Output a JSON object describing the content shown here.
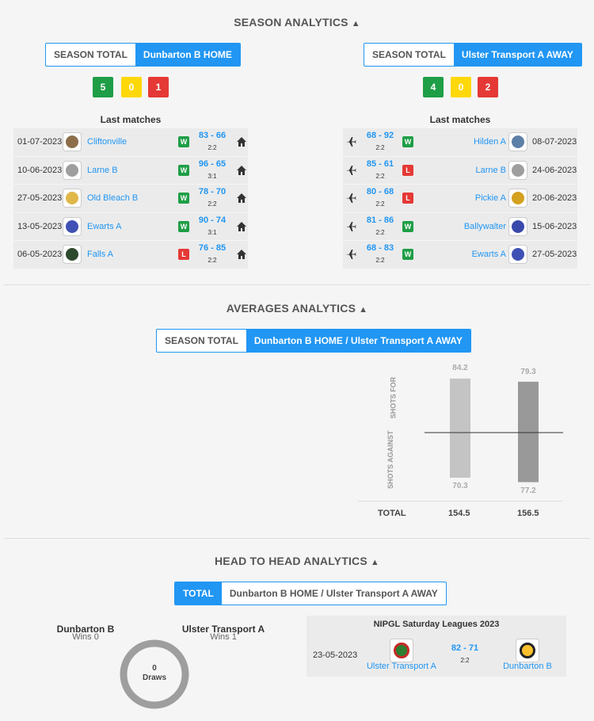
{
  "season": {
    "title": "SEASON ANALYTICS",
    "left": {
      "toggle": [
        "SEASON TOTAL",
        "Dunbarton B HOME"
      ],
      "form": {
        "win": "5",
        "draw": "0",
        "loss": "1"
      },
      "last_matches_label": "Last matches",
      "matches": [
        {
          "date": "01-07-2023",
          "team": "Cliftonville",
          "result": "W",
          "score_home": "83",
          "score_away": "66",
          "sub": "2:2"
        },
        {
          "date": "10-06-2023",
          "team": "Larne B",
          "result": "W",
          "score_home": "96",
          "score_away": "65",
          "sub": "3:1"
        },
        {
          "date": "27-05-2023",
          "team": "Old Bleach B",
          "result": "W",
          "score_home": "78",
          "score_away": "70",
          "sub": "2:2"
        },
        {
          "date": "13-05-2023",
          "team": "Ewarts A",
          "result": "W",
          "score_home": "90",
          "score_away": "74",
          "sub": "3:1"
        },
        {
          "date": "06-05-2023",
          "team": "Falls A",
          "result": "L",
          "score_home": "76",
          "score_away": "85",
          "sub": "2:2"
        }
      ]
    },
    "right": {
      "toggle": [
        "SEASON TOTAL",
        "Ulster Transport A AWAY"
      ],
      "form": {
        "win": "4",
        "draw": "0",
        "loss": "2"
      },
      "last_matches_label": "Last matches",
      "matches": [
        {
          "date": "08-07-2023",
          "team": "Hilden A",
          "result": "W",
          "score_home": "68",
          "score_away": "92",
          "sub": "2:2"
        },
        {
          "date": "24-06-2023",
          "team": "Larne B",
          "result": "L",
          "score_home": "85",
          "score_away": "61",
          "sub": "2:2"
        },
        {
          "date": "20-06-2023",
          "team": "Pickie A",
          "result": "L",
          "score_home": "80",
          "score_away": "68",
          "sub": "2:2"
        },
        {
          "date": "15-06-2023",
          "team": "Ballywalter",
          "result": "W",
          "score_home": "81",
          "score_away": "86",
          "sub": "2:2"
        },
        {
          "date": "27-05-2023",
          "team": "Ewarts A",
          "result": "W",
          "score_home": "68",
          "score_away": "83",
          "sub": "2:2"
        }
      ]
    }
  },
  "averages": {
    "title": "AVERAGES ANALYTICS",
    "toggle": [
      "SEASON TOTAL",
      "Dunbarton B HOME / Ulster Transport A AWAY"
    ],
    "label_for": "SHOTS FOR",
    "label_against": "SHOTS AGAINST",
    "total_label": "TOTAL",
    "home": {
      "for": "84.2",
      "against": "70.3",
      "total": "154.5"
    },
    "away": {
      "for": "79.3",
      "against": "77.2",
      "total": "156.5"
    }
  },
  "chart_data": {
    "type": "bar",
    "categories": [
      "Dunbarton B HOME",
      "Ulster Transport A AWAY"
    ],
    "series": [
      {
        "name": "SHOTS FOR",
        "values": [
          84.2,
          79.3
        ]
      },
      {
        "name": "SHOTS AGAINST",
        "values": [
          70.3,
          77.2
        ]
      }
    ],
    "totals": [
      154.5,
      156.5
    ]
  },
  "h2h": {
    "title": "HEAD TO HEAD ANALYTICS",
    "toggle": [
      "TOTAL",
      "Dunbarton B HOME / Ulster Transport A AWAY"
    ],
    "team_a": "Dunbarton B",
    "team_a_wins": "Wins 0",
    "team_b": "Ulster Transport A",
    "team_b_wins": "Wins 1",
    "draws_count": "0",
    "draws_label": "Draws",
    "league": "NIPGL Saturday Leagues 2023",
    "match": {
      "date": "23-05-2023",
      "home": "Ulster Transport A",
      "away": "Dunbarton B",
      "score_home": "82",
      "score_away": "71",
      "sub": "2:2"
    }
  },
  "colors": {
    "accent": "#2196f3",
    "win": "#1e9e46",
    "draw": "#ffd80a",
    "loss": "#e53935"
  }
}
